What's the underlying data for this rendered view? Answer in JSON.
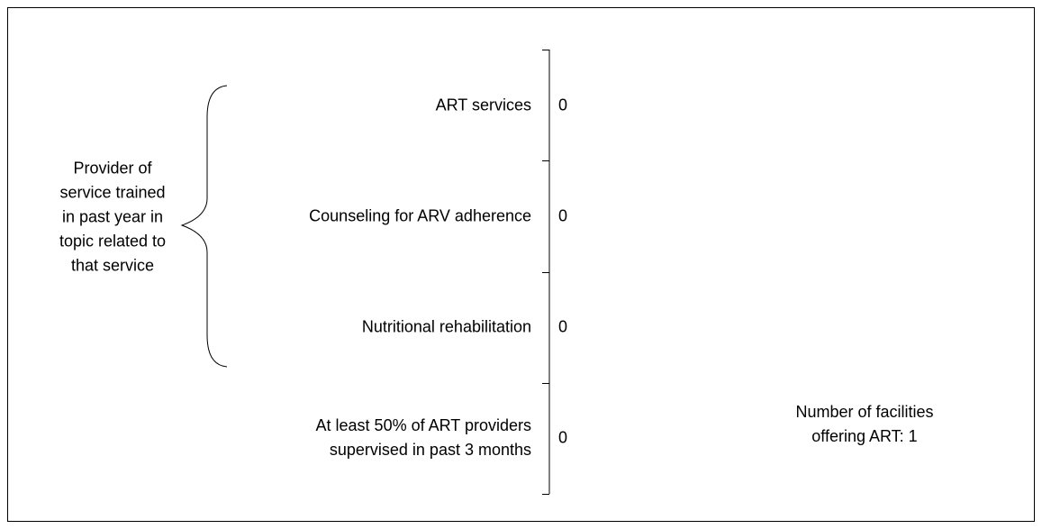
{
  "chart_data": {
    "type": "bar",
    "orientation": "horizontal",
    "categories": [
      "ART services",
      "Counseling for ARV adherence",
      "Nutritional rehabilitation",
      "At least 50% of ART providers supervised in past 3 months"
    ],
    "values": [
      0,
      0,
      0,
      0
    ],
    "color": "#4472c4",
    "group_label": "Provider of service trained in past year in topic related to that service",
    "annotation": "Number of facilities offering ART: 1"
  }
}
